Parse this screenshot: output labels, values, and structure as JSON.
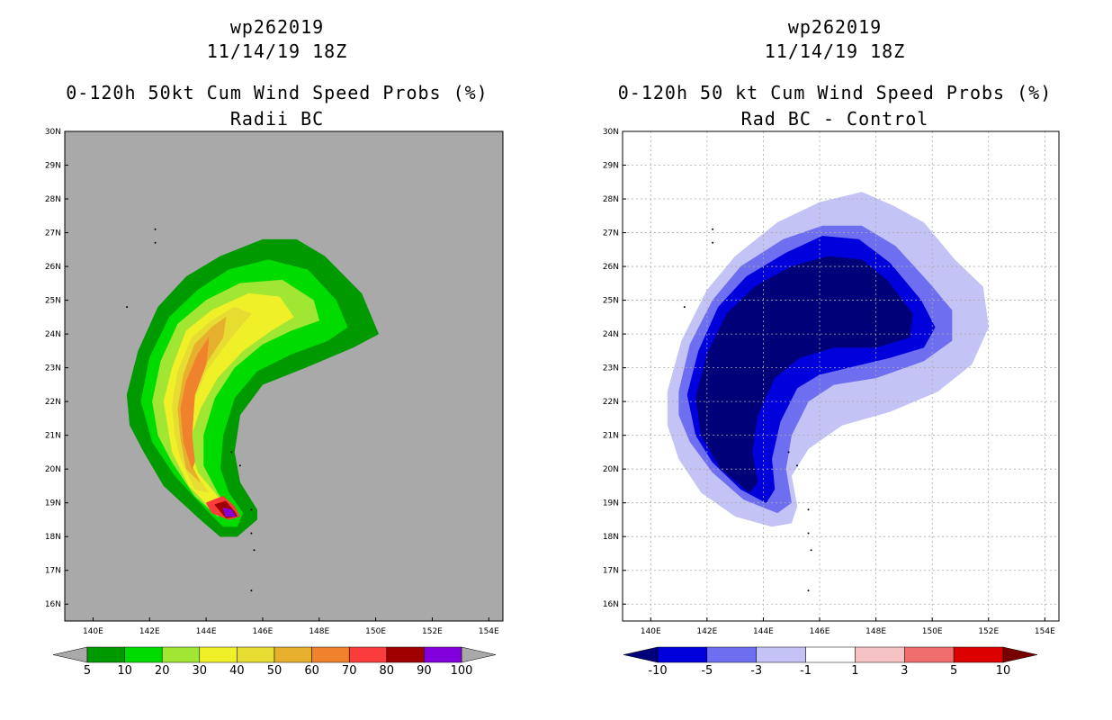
{
  "chart_data": [
    {
      "type": "heatmap",
      "storm_id": "wp262019",
      "date_time": "11/14/19 18Z",
      "title": "0-120h 50kt Cum Wind Speed Probs (%)",
      "subtitle": "Radii BC",
      "background_color": "#a9a9a9",
      "grid": false,
      "x_range": [
        139,
        154.5
      ],
      "y_range": [
        15.5,
        30
      ],
      "x_ticks": [
        "140E",
        "142E",
        "144E",
        "146E",
        "148E",
        "150E",
        "152E",
        "154E"
      ],
      "y_ticks": [
        "16N",
        "17N",
        "18N",
        "19N",
        "20N",
        "21N",
        "22N",
        "23N",
        "24N",
        "25N",
        "26N",
        "27N",
        "28N",
        "29N",
        "30N"
      ],
      "colorbar": {
        "labels": [
          "5",
          "10",
          "20",
          "30",
          "40",
          "50",
          "60",
          "70",
          "80",
          "90",
          "100"
        ],
        "colors": [
          "#009a00",
          "#00dc00",
          "#a0e632",
          "#f0f028",
          "#e6dc32",
          "#e6af2d",
          "#f0822d",
          "#fa3c3c",
          "#a00000",
          "#8200dc"
        ],
        "under_color": "#a9a9a9",
        "over_color": "#a9a9a9"
      },
      "contours": [
        {
          "level": 5,
          "color": "#009a00",
          "points": [
            [
              141.2,
              22.2
            ],
            [
              141.6,
              23.5
            ],
            [
              142.3,
              24.8
            ],
            [
              143.3,
              25.7
            ],
            [
              144.5,
              26.3
            ],
            [
              146,
              26.8
            ],
            [
              147.2,
              26.8
            ],
            [
              148.2,
              26.3
            ],
            [
              149.5,
              25.2
            ],
            [
              150.1,
              24.0
            ],
            [
              149.2,
              23.6
            ],
            [
              147.5,
              23.0
            ],
            [
              146,
              22.5
            ],
            [
              145.2,
              21.6
            ],
            [
              145,
              20.5
            ],
            [
              145.2,
              19.6
            ],
            [
              145.8,
              18.8
            ],
            [
              145.8,
              18.5
            ],
            [
              145.1,
              18.0
            ],
            [
              144.5,
              18.0
            ],
            [
              143.8,
              18.5
            ],
            [
              142.5,
              19.5
            ],
            [
              141.8,
              20.5
            ],
            [
              141.3,
              21.3
            ]
          ]
        },
        {
          "level": 10,
          "color": "#00dc00",
          "points": [
            [
              141.7,
              22.0
            ],
            [
              142.0,
              23.3
            ],
            [
              142.7,
              24.5
            ],
            [
              143.7,
              25.3
            ],
            [
              144.8,
              25.9
            ],
            [
              146.2,
              26.2
            ],
            [
              147.6,
              25.9
            ],
            [
              148.6,
              25.0
            ],
            [
              149.0,
              24.2
            ],
            [
              148.3,
              23.8
            ],
            [
              147.0,
              23.4
            ],
            [
              145.8,
              22.9
            ],
            [
              145.0,
              22.1
            ],
            [
              144.6,
              21.0
            ],
            [
              144.5,
              20.0
            ],
            [
              144.8,
              19.3
            ],
            [
              145.3,
              18.7
            ],
            [
              145.1,
              18.3
            ],
            [
              144.6,
              18.3
            ],
            [
              144.0,
              18.8
            ],
            [
              142.9,
              19.8
            ],
            [
              142.1,
              20.8
            ]
          ]
        },
        {
          "level": 20,
          "color": "#a0e632",
          "points": [
            [
              142.1,
              22.0
            ],
            [
              142.4,
              23.2
            ],
            [
              143.0,
              24.3
            ],
            [
              144.0,
              25.0
            ],
            [
              145.2,
              25.5
            ],
            [
              146.7,
              25.6
            ],
            [
              147.8,
              25.0
            ],
            [
              148.0,
              24.4
            ],
            [
              147.0,
              24.1
            ],
            [
              146.0,
              23.7
            ],
            [
              145.0,
              23.0
            ],
            [
              144.3,
              22.1
            ],
            [
              143.9,
              21.0
            ],
            [
              143.9,
              20.1
            ],
            [
              144.4,
              19.3
            ],
            [
              144.9,
              18.7
            ],
            [
              144.4,
              18.6
            ],
            [
              143.6,
              19.2
            ],
            [
              142.8,
              20.2
            ],
            [
              142.3,
              21.0
            ]
          ]
        },
        {
          "level": 30,
          "color": "#f0f028",
          "points": [
            [
              142.5,
              22.0
            ],
            [
              142.8,
              23.0
            ],
            [
              143.3,
              24.1
            ],
            [
              144.2,
              24.7
            ],
            [
              145.5,
              25.2
            ],
            [
              146.6,
              25.1
            ],
            [
              147.1,
              24.5
            ],
            [
              146.3,
              24.1
            ],
            [
              145.3,
              23.5
            ],
            [
              144.4,
              22.7
            ],
            [
              143.8,
              21.8
            ],
            [
              143.4,
              20.8
            ],
            [
              143.7,
              19.9
            ],
            [
              144.5,
              19.1
            ],
            [
              144.2,
              18.8
            ],
            [
              143.4,
              19.5
            ],
            [
              142.8,
              20.5
            ]
          ]
        },
        {
          "level": 40,
          "color": "#e6dc32",
          "points": [
            [
              142.8,
              21.9
            ],
            [
              143.0,
              22.9
            ],
            [
              143.5,
              23.9
            ],
            [
              144.2,
              24.4
            ],
            [
              145.0,
              24.8
            ],
            [
              145.6,
              24.6
            ],
            [
              144.8,
              23.8
            ],
            [
              144.0,
              22.9
            ],
            [
              143.5,
              21.9
            ],
            [
              143.2,
              20.8
            ],
            [
              143.5,
              20.0
            ],
            [
              144.1,
              19.3
            ],
            [
              143.6,
              19.4
            ],
            [
              143.1,
              20.3
            ],
            [
              142.9,
              21.0
            ]
          ]
        },
        {
          "level": 50,
          "color": "#e6af2d",
          "points": [
            [
              143.0,
              21.8
            ],
            [
              143.2,
              22.8
            ],
            [
              143.6,
              23.7
            ],
            [
              144.2,
              24.2
            ],
            [
              144.7,
              24.5
            ],
            [
              144.6,
              23.9
            ],
            [
              143.9,
              23.0
            ],
            [
              143.5,
              22.0
            ],
            [
              143.3,
              20.9
            ],
            [
              143.5,
              20.1
            ],
            [
              143.8,
              19.6
            ],
            [
              143.3,
              20.0
            ],
            [
              143.1,
              20.9
            ]
          ]
        },
        {
          "level": 60,
          "color": "#f0822d",
          "points": [
            [
              143.1,
              21.8
            ],
            [
              143.3,
              22.6
            ],
            [
              143.7,
              23.4
            ],
            [
              144.1,
              23.9
            ],
            [
              144.0,
              23.1
            ],
            [
              143.6,
              22.2
            ],
            [
              143.5,
              21.0
            ],
            [
              143.6,
              20.2
            ],
            [
              143.5,
              20.0
            ],
            [
              143.2,
              20.8
            ]
          ]
        },
        {
          "level": 70,
          "color": "#fa3c3c",
          "points": [
            [
              144.0,
              19.0
            ],
            [
              144.6,
              19.2
            ],
            [
              145.0,
              18.9
            ],
            [
              145.2,
              18.6
            ],
            [
              144.8,
              18.5
            ],
            [
              144.2,
              18.7
            ]
          ]
        },
        {
          "level": 80,
          "color": "#a00000",
          "points": [
            [
              144.3,
              18.95
            ],
            [
              144.7,
              19.05
            ],
            [
              145.0,
              18.75
            ],
            [
              145.1,
              18.6
            ],
            [
              144.7,
              18.55
            ]
          ]
        },
        {
          "level": 90,
          "color": "#8200dc",
          "points": [
            [
              144.6,
              18.85
            ],
            [
              144.9,
              18.8
            ],
            [
              145.05,
              18.6
            ],
            [
              144.7,
              18.6
            ]
          ]
        }
      ]
    },
    {
      "type": "heatmap",
      "storm_id": "wp262019",
      "date_time": "11/14/19 18Z",
      "title": "0-120h 50 kt Cum Wind Speed Probs (%)",
      "subtitle": "Rad BC - Control",
      "background_color": "#ffffff",
      "grid": true,
      "x_range": [
        139,
        154.5
      ],
      "y_range": [
        15.5,
        30
      ],
      "x_ticks": [
        "140E",
        "142E",
        "144E",
        "146E",
        "148E",
        "150E",
        "152E",
        "154E"
      ],
      "y_ticks": [
        "16N",
        "17N",
        "18N",
        "19N",
        "20N",
        "21N",
        "22N",
        "23N",
        "24N",
        "25N",
        "26N",
        "27N",
        "28N",
        "29N",
        "30N"
      ],
      "colorbar": {
        "labels": [
          "-10",
          "-5",
          "-3",
          "-1",
          "1",
          "3",
          "5",
          "10"
        ],
        "colors": [
          "#0000dc",
          "#6e6ef0",
          "#c3c3f5",
          "#ffffff",
          "#f5c3c3",
          "#f06e6e",
          "#dc0000"
        ],
        "under_color": "#000078",
        "over_color": "#780000"
      },
      "contours": [
        {
          "level": -1,
          "color": "#c3c3f5",
          "points": [
            [
              140.6,
              22.3
            ],
            [
              141.1,
              23.8
            ],
            [
              142.0,
              25.3
            ],
            [
              143.0,
              26.3
            ],
            [
              144.5,
              27.3
            ],
            [
              146.0,
              27.9
            ],
            [
              147.5,
              28.2
            ],
            [
              148.6,
              27.8
            ],
            [
              149.7,
              27.3
            ],
            [
              150.8,
              26.2
            ],
            [
              151.8,
              25.4
            ],
            [
              152.0,
              24.2
            ],
            [
              151.4,
              23.1
            ],
            [
              150.2,
              22.3
            ],
            [
              148.5,
              21.7
            ],
            [
              146.8,
              21.3
            ],
            [
              145.6,
              20.6
            ],
            [
              145.0,
              19.8
            ],
            [
              145.2,
              18.9
            ],
            [
              145.0,
              18.4
            ],
            [
              144.3,
              18.3
            ],
            [
              143.0,
              18.6
            ],
            [
              141.8,
              19.3
            ],
            [
              141.0,
              20.3
            ],
            [
              140.6,
              21.3
            ]
          ]
        },
        {
          "level": -3,
          "color": "#6e6ef0",
          "points": [
            [
              141.0,
              22.3
            ],
            [
              141.4,
              23.7
            ],
            [
              142.2,
              25.0
            ],
            [
              143.2,
              26.0
            ],
            [
              144.7,
              26.8
            ],
            [
              146.1,
              27.2
            ],
            [
              147.5,
              27.2
            ],
            [
              148.7,
              26.6
            ],
            [
              149.9,
              25.5
            ],
            [
              150.7,
              24.7
            ],
            [
              150.7,
              23.8
            ],
            [
              149.7,
              23.2
            ],
            [
              148.0,
              22.7
            ],
            [
              146.5,
              22.5
            ],
            [
              145.6,
              22.0
            ],
            [
              145.0,
              21.0
            ],
            [
              144.8,
              20.0
            ],
            [
              145.0,
              19.0
            ],
            [
              144.5,
              18.7
            ],
            [
              143.3,
              19.1
            ],
            [
              142.2,
              19.9
            ],
            [
              141.4,
              20.8
            ],
            [
              141.0,
              21.6
            ]
          ]
        },
        {
          "level": -5,
          "color": "#0000dc",
          "points": [
            [
              141.3,
              22.2
            ],
            [
              141.7,
              23.5
            ],
            [
              142.4,
              24.8
            ],
            [
              143.4,
              25.7
            ],
            [
              144.8,
              26.4
            ],
            [
              146.1,
              26.9
            ],
            [
              147.4,
              26.8
            ],
            [
              148.5,
              26.1
            ],
            [
              149.6,
              25.0
            ],
            [
              150.1,
              24.2
            ],
            [
              149.7,
              23.6
            ],
            [
              148.5,
              23.3
            ],
            [
              147.0,
              23.0
            ],
            [
              146.0,
              22.8
            ],
            [
              145.2,
              22.4
            ],
            [
              144.6,
              21.4
            ],
            [
              144.3,
              20.3
            ],
            [
              144.4,
              19.4
            ],
            [
              144.1,
              19.0
            ],
            [
              143.2,
              19.4
            ],
            [
              142.2,
              20.2
            ],
            [
              141.6,
              21.0
            ]
          ]
        },
        {
          "level": -10,
          "color": "#000078",
          "points": [
            [
              141.6,
              22.1
            ],
            [
              142.0,
              23.4
            ],
            [
              142.7,
              24.6
            ],
            [
              143.7,
              25.4
            ],
            [
              145.0,
              26.0
            ],
            [
              146.3,
              26.3
            ],
            [
              147.5,
              26.2
            ],
            [
              148.4,
              25.6
            ],
            [
              149.3,
              24.6
            ],
            [
              149.2,
              23.9
            ],
            [
              148.0,
              23.6
            ],
            [
              146.5,
              23.6
            ],
            [
              145.3,
              23.3
            ],
            [
              144.4,
              22.7
            ],
            [
              143.8,
              21.6
            ],
            [
              143.6,
              20.5
            ],
            [
              143.8,
              19.6
            ],
            [
              143.5,
              19.3
            ],
            [
              142.5,
              20.0
            ],
            [
              141.8,
              21.0
            ]
          ]
        }
      ]
    }
  ]
}
